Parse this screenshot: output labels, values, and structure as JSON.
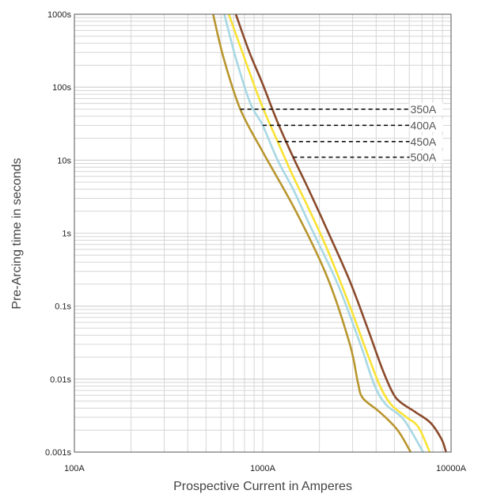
{
  "chart_data": {
    "type": "line",
    "xlabel": "Prospective Current in Amperes",
    "ylabel": "Pre-Arcing time in seconds",
    "x_scale": "log",
    "y_scale": "log",
    "xlim": [
      100,
      10000
    ],
    "ylim": [
      0.001,
      1000
    ],
    "grid": true,
    "legend": "inline dashed leaders, upper center",
    "x_ticks": [
      {
        "value": 100,
        "label": "100A"
      },
      {
        "value": 1000,
        "label": "1000A"
      },
      {
        "value": 10000,
        "label": "10000A"
      }
    ],
    "y_ticks": [
      {
        "value": 1000,
        "label": "1000s"
      },
      {
        "value": 100,
        "label": "100s"
      },
      {
        "value": 10,
        "label": "10s"
      },
      {
        "value": 1,
        "label": "1s"
      },
      {
        "value": 0.1,
        "label": "0.1s"
      },
      {
        "value": 0.01,
        "label": "0.01s"
      },
      {
        "value": 0.001,
        "label": "0.001s"
      }
    ],
    "series": [
      {
        "name": "350A",
        "color": "#b8962e",
        "legend_anchor": [
          760,
          50
        ],
        "points": [
          [
            545,
            1000
          ],
          [
            620,
            250
          ],
          [
            760,
            50
          ],
          [
            1000,
            13
          ],
          [
            1500,
            2
          ],
          [
            2200,
            0.25
          ],
          [
            2900,
            0.03
          ],
          [
            3200,
            0.009
          ],
          [
            3400,
            0.0055
          ],
          [
            4200,
            0.0035
          ],
          [
            5200,
            0.002
          ],
          [
            6100,
            0.001
          ]
        ]
      },
      {
        "name": "400A",
        "color": "#a8d8e4",
        "legend_anchor": [
          1000,
          30
        ],
        "points": [
          [
            625,
            1000
          ],
          [
            720,
            250
          ],
          [
            860,
            60
          ],
          [
            1000,
            30
          ],
          [
            1200,
            10
          ],
          [
            1450,
            4
          ],
          [
            1800,
            1.2
          ],
          [
            2500,
            0.2
          ],
          [
            3300,
            0.03
          ],
          [
            3900,
            0.0085
          ],
          [
            4500,
            0.0045
          ],
          [
            5600,
            0.0028
          ],
          [
            7100,
            0.001
          ]
        ]
      },
      {
        "name": "450A",
        "color": "#f9e234",
        "legend_anchor": [
          1200,
          18
        ],
        "points": [
          [
            660,
            1000
          ],
          [
            800,
            250
          ],
          [
            980,
            60
          ],
          [
            1200,
            18
          ],
          [
            1450,
            6
          ],
          [
            1750,
            2.2
          ],
          [
            2200,
            0.6
          ],
          [
            2900,
            0.1
          ],
          [
            3600,
            0.022
          ],
          [
            4200,
            0.008
          ],
          [
            4800,
            0.0045
          ],
          [
            5800,
            0.003
          ],
          [
            6700,
            0.0022
          ],
          [
            7700,
            0.001
          ]
        ]
      },
      {
        "name": "500A",
        "color": "#8b4a2b",
        "legend_anchor": [
          1450,
          11
        ],
        "points": [
          [
            720,
            1000
          ],
          [
            850,
            300
          ],
          [
            1000,
            110
          ],
          [
            1200,
            33
          ],
          [
            1450,
            11
          ],
          [
            1750,
            4
          ],
          [
            2200,
            1.1
          ],
          [
            2900,
            0.22
          ],
          [
            3600,
            0.05
          ],
          [
            4300,
            0.014
          ],
          [
            4900,
            0.0065
          ],
          [
            5400,
            0.0048
          ],
          [
            6500,
            0.0035
          ],
          [
            7800,
            0.0025
          ],
          [
            8900,
            0.0015
          ],
          [
            9400,
            0.001
          ]
        ]
      }
    ],
    "legend_label_x": 3000
  }
}
